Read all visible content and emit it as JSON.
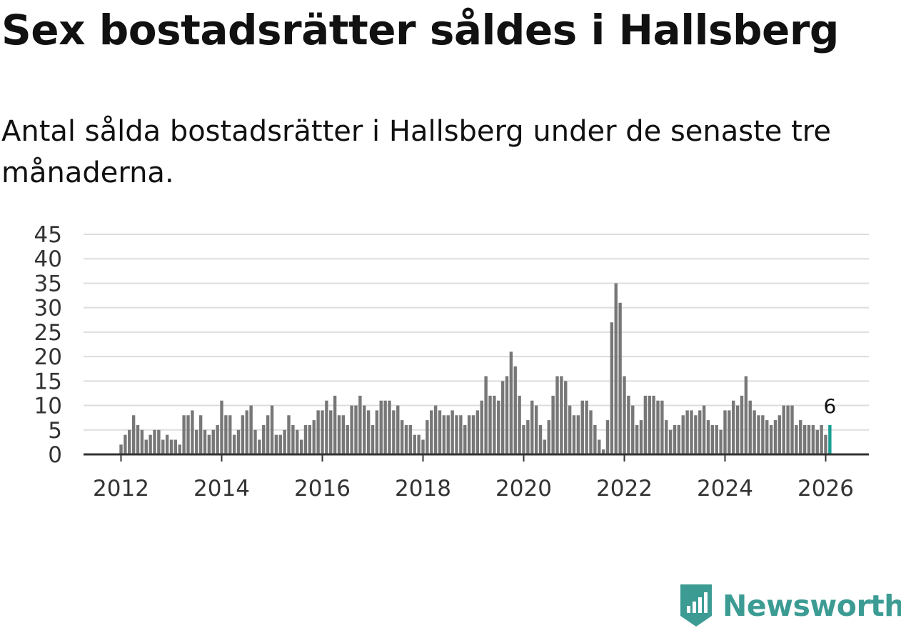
{
  "title": "Sex bostadsrätter såldes i Hallsberg",
  "subtitle": "Antal sålda bostadsrätter i Hallsberg under de senaste tre månaderna.",
  "brand": {
    "name": "Newsworthy",
    "color": "#3c9c94"
  },
  "chart_data": {
    "type": "bar",
    "title": "Sex bostadsrätter såldes i Hallsberg",
    "xlabel": "",
    "ylabel": "",
    "ylim": [
      0,
      45
    ],
    "grid": true,
    "y_ticks": [
      "0",
      "5",
      "10",
      "15",
      "20",
      "25",
      "30",
      "35",
      "40",
      "45"
    ],
    "x_ticks": [
      "2012",
      "2014",
      "2016",
      "2018",
      "2020",
      "2022",
      "2024",
      "2026"
    ],
    "x_start": "2012-01",
    "bar_color": "#777777",
    "highlight_color": "#1a9e95",
    "last_value_label": "6",
    "values": [
      2,
      4,
      5,
      8,
      6,
      5,
      3,
      4,
      5,
      5,
      3,
      4,
      3,
      3,
      2,
      8,
      8,
      9,
      5,
      8,
      5,
      4,
      5,
      6,
      11,
      8,
      8,
      4,
      5,
      8,
      9,
      10,
      5,
      3,
      6,
      8,
      10,
      4,
      4,
      5,
      8,
      6,
      5,
      3,
      6,
      6,
      7,
      9,
      9,
      11,
      9,
      12,
      8,
      8,
      6,
      10,
      10,
      12,
      10,
      9,
      6,
      9,
      11,
      11,
      11,
      9,
      10,
      7,
      6,
      6,
      4,
      4,
      3,
      7,
      9,
      10,
      9,
      8,
      8,
      9,
      8,
      8,
      6,
      8,
      8,
      9,
      11,
      16,
      12,
      12,
      11,
      15,
      16,
      21,
      18,
      12,
      6,
      7,
      11,
      10,
      6,
      3,
      7,
      12,
      16,
      16,
      15,
      10,
      8,
      8,
      11,
      11,
      9,
      6,
      3,
      1,
      7,
      27,
      35,
      31,
      16,
      12,
      10,
      6,
      7,
      12,
      12,
      12,
      11,
      11,
      7,
      5,
      6,
      6,
      8,
      9,
      9,
      8,
      9,
      10,
      7,
      6,
      6,
      5,
      9,
      9,
      11,
      10,
      12,
      16,
      11,
      9,
      8,
      8,
      7,
      6,
      7,
      8,
      10,
      10,
      10,
      6,
      7,
      6,
      6,
      6,
      5,
      6,
      4,
      6
    ]
  }
}
